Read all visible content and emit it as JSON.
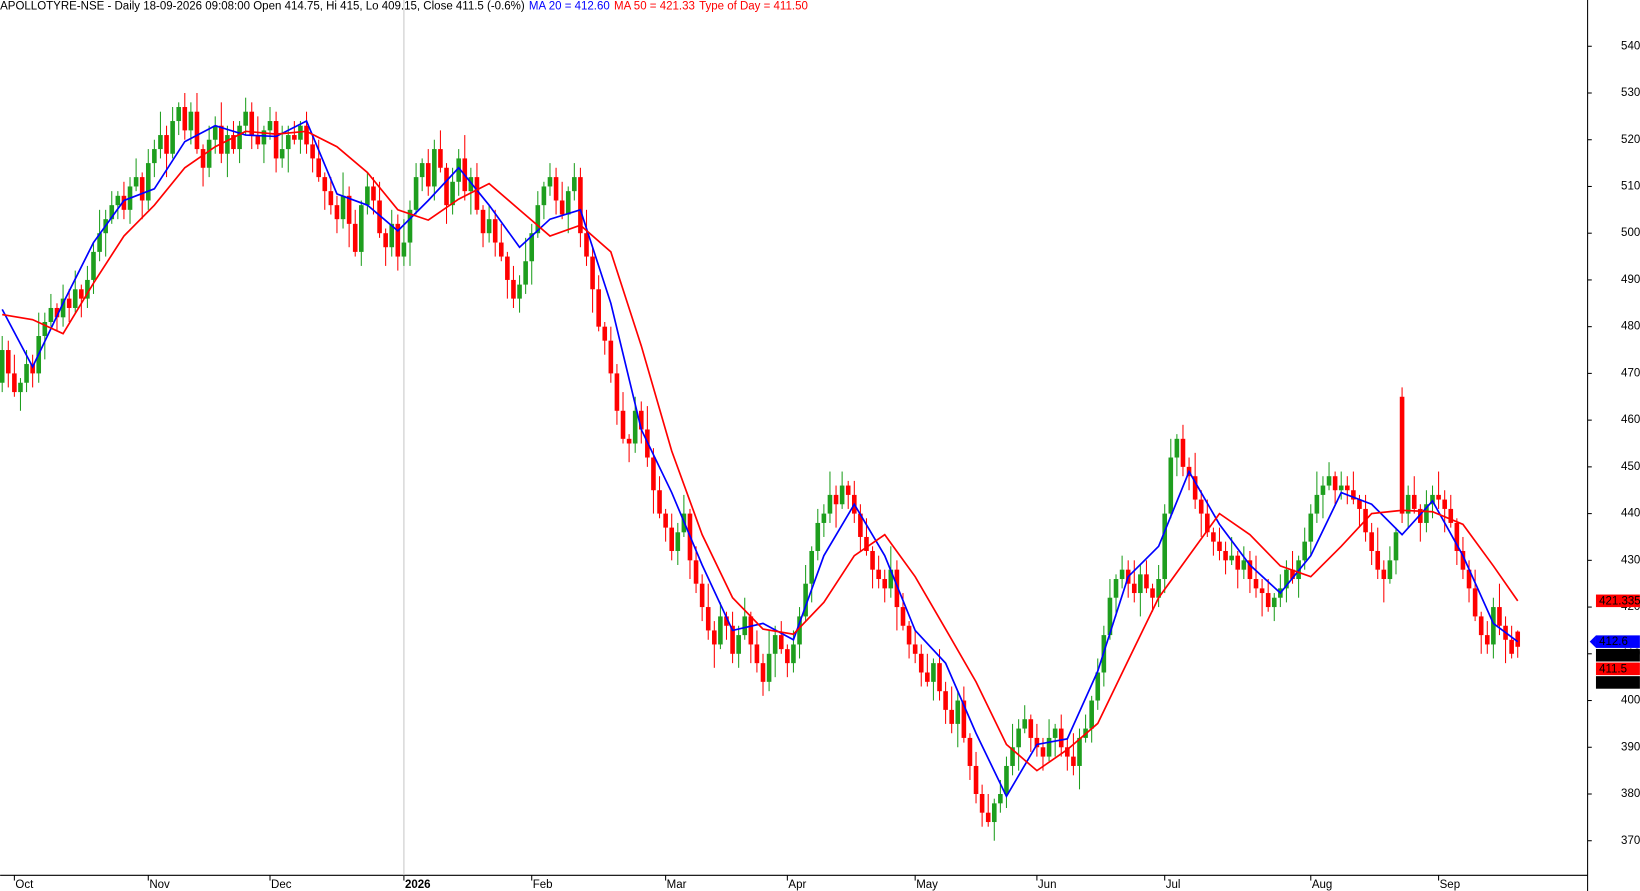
{
  "chart_data": {
    "type": "candlestick",
    "header": [
      {
        "text": "APOLLOTYRE-NSE - Daily 18-09-2026 09:08:00 Open 414.75, Hi 415, Lo 409.15, Close 411.5 (-0.6%)",
        "color": "#000000"
      },
      {
        "text": "MA 20 = 412.60",
        "color": "#0000ff"
      },
      {
        "text": "MA 50 = 421.33",
        "color": "#ff0000"
      },
      {
        "text": "Type of Day = 411.50",
        "color": "#ff0000"
      }
    ],
    "categories": [
      null,
      null,
      "Oct",
      null,
      null,
      null,
      null,
      null,
      null,
      null,
      null,
      null,
      null,
      null,
      null,
      null,
      null,
      null,
      null,
      null,
      null,
      null,
      null,
      null,
      "Nov",
      null,
      null,
      null,
      null,
      null,
      null,
      null,
      null,
      null,
      null,
      null,
      null,
      null,
      null,
      null,
      null,
      null,
      null,
      null,
      "Dec",
      null,
      null,
      null,
      null,
      null,
      null,
      null,
      null,
      null,
      null,
      null,
      null,
      null,
      null,
      null,
      null,
      null,
      null,
      null,
      null,
      null,
      "2026",
      null,
      null,
      null,
      null,
      null,
      null,
      null,
      null,
      null,
      null,
      null,
      null,
      null,
      null,
      null,
      null,
      null,
      null,
      null,
      null,
      "Feb",
      null,
      null,
      null,
      null,
      null,
      null,
      null,
      null,
      null,
      null,
      null,
      null,
      null,
      null,
      null,
      null,
      null,
      null,
      null,
      null,
      null,
      "Mar",
      null,
      null,
      null,
      null,
      null,
      null,
      null,
      null,
      null,
      null,
      null,
      null,
      null,
      null,
      null,
      null,
      null,
      null,
      null,
      "Apr",
      null,
      null,
      null,
      null,
      null,
      null,
      null,
      null,
      null,
      null,
      null,
      null,
      null,
      null,
      null,
      null,
      null,
      null,
      null,
      null,
      "May",
      null,
      null,
      null,
      null,
      null,
      null,
      null,
      null,
      null,
      null,
      null,
      null,
      null,
      null,
      null,
      null,
      null,
      null,
      null,
      "Jun",
      null,
      null,
      null,
      null,
      null,
      null,
      null,
      null,
      null,
      null,
      null,
      null,
      null,
      null,
      null,
      null,
      null,
      null,
      null,
      null,
      "Jul",
      null,
      null,
      null,
      null,
      null,
      null,
      null,
      null,
      null,
      null,
      null,
      null,
      null,
      null,
      null,
      null,
      null,
      null,
      null,
      null,
      null,
      null,
      null,
      "Aug",
      null,
      null,
      null,
      null,
      null,
      null,
      null,
      null,
      null,
      null,
      null,
      null,
      null,
      null,
      null,
      null,
      null,
      null,
      null,
      null,
      "Sep",
      null,
      null,
      null,
      null,
      null,
      null,
      null,
      null,
      null,
      null,
      null,
      null,
      null
    ],
    "open": [
      468,
      475,
      470,
      466,
      468,
      472,
      470,
      478,
      481,
      484,
      482,
      486,
      484,
      488,
      486,
      490,
      496,
      500,
      503,
      506,
      508,
      505,
      510,
      512,
      507,
      515,
      518,
      521,
      517,
      524,
      527,
      522,
      526,
      518,
      514,
      520,
      523,
      517,
      521,
      518,
      523,
      526,
      521,
      519,
      522,
      524,
      516,
      518,
      521,
      520,
      523,
      519,
      516,
      512,
      509,
      506,
      503,
      508,
      502,
      496,
      506,
      510,
      507,
      500,
      497,
      502,
      495,
      498,
      505,
      512,
      515,
      510,
      518,
      514,
      506,
      511,
      516,
      509,
      512,
      505,
      500,
      503,
      498,
      495,
      490,
      486,
      489,
      494,
      500,
      506,
      510,
      512,
      507,
      504,
      509,
      512,
      500,
      495,
      488,
      480,
      477,
      470,
      462,
      456,
      455,
      462,
      458,
      452,
      445,
      440,
      437,
      432,
      436,
      440,
      430,
      425,
      420,
      415,
      412,
      418,
      416,
      410,
      414,
      418,
      412,
      408,
      404,
      410,
      414,
      411,
      408,
      412,
      418,
      425,
      432,
      438,
      440,
      444,
      442,
      446,
      444,
      440,
      435,
      432,
      428,
      426,
      424,
      428,
      420,
      416,
      412,
      410,
      406,
      404,
      408,
      402,
      398,
      395,
      400,
      392,
      386,
      380,
      376,
      374,
      378,
      380,
      386,
      390,
      394,
      396,
      392,
      390,
      388,
      392,
      394,
      390,
      388,
      386,
      392,
      394,
      400,
      406,
      414,
      422,
      426,
      428,
      425,
      423,
      427,
      424,
      422,
      426,
      440,
      452,
      456,
      450,
      448,
      443,
      440,
      436,
      434,
      432,
      430,
      431,
      428,
      430,
      426,
      424,
      423,
      420,
      422,
      424,
      428,
      426,
      430,
      434,
      440,
      444,
      446,
      448,
      445,
      446,
      445,
      443,
      441,
      436,
      432,
      428,
      426,
      430,
      465,
      440,
      444,
      441,
      438,
      442,
      444,
      443,
      441,
      438,
      432,
      428,
      424,
      418,
      414,
      412,
      420,
      416,
      413,
      414.75
    ],
    "high": [
      478,
      477,
      474,
      469,
      475,
      474,
      483,
      483,
      487,
      485,
      489,
      488,
      492,
      489,
      493,
      498,
      505,
      505,
      509,
      509,
      511,
      512,
      516,
      513,
      518,
      520,
      526,
      523,
      527,
      528,
      530,
      528,
      530,
      519,
      523,
      525,
      528,
      523,
      524,
      524,
      529,
      528,
      525,
      523,
      527,
      526,
      523,
      523,
      524,
      524,
      526,
      521,
      520,
      513,
      512,
      508,
      513,
      510,
      505,
      507,
      513,
      512,
      511,
      501,
      505,
      504,
      503,
      507,
      515,
      516,
      518,
      520,
      522,
      515,
      514,
      518,
      521,
      514,
      515,
      506,
      506,
      505,
      502,
      496,
      493,
      491,
      499,
      502,
      509,
      511,
      515,
      514,
      511,
      510,
      515,
      514,
      505,
      497,
      491,
      481,
      480,
      472,
      466,
      457,
      465,
      464,
      463,
      454,
      448,
      441,
      440,
      438,
      444,
      441,
      433,
      427,
      425,
      417,
      421,
      419,
      419,
      416,
      422,
      419,
      415,
      410,
      415,
      416,
      417,
      412,
      415,
      420,
      429,
      433,
      441,
      442,
      449,
      446,
      449,
      447,
      447,
      442,
      439,
      433,
      431,
      428,
      433,
      430,
      423,
      417,
      415,
      412,
      410,
      409,
      411,
      404,
      403,
      402,
      403,
      393,
      389,
      382,
      380,
      379,
      383,
      388,
      395,
      396,
      399,
      397,
      395,
      392,
      396,
      395,
      397,
      392,
      393,
      394,
      397,
      401,
      409,
      416,
      426,
      427,
      431,
      430,
      430,
      429,
      430,
      425,
      429,
      442,
      456,
      457,
      459,
      452,
      453,
      445,
      443,
      437,
      437,
      434,
      435,
      432,
      433,
      432,
      431,
      426,
      426,
      423,
      427,
      430,
      432,
      431,
      437,
      442,
      449,
      448,
      451,
      449,
      449,
      448,
      449,
      444,
      444,
      438,
      437,
      430,
      433,
      437,
      467,
      446,
      448,
      442,
      445,
      446,
      449,
      445,
      444,
      439,
      435,
      430,
      428,
      419,
      417,
      422,
      425,
      418,
      416,
      415
    ],
    "low": [
      466,
      467,
      465,
      462,
      466,
      467,
      468,
      473,
      480,
      479,
      480,
      481,
      483,
      482,
      484,
      487,
      494,
      495,
      502,
      503,
      503,
      502,
      509,
      503,
      505,
      512,
      516,
      512,
      516,
      521,
      520,
      519,
      517,
      510,
      512,
      517,
      515,
      512,
      517,
      515,
      521,
      518,
      518,
      515,
      520,
      513,
      514,
      513,
      519,
      517,
      517,
      513,
      511,
      505,
      504,
      500,
      501,
      497,
      495,
      493,
      504,
      504,
      499,
      493,
      495,
      492,
      493,
      493,
      504,
      509,
      508,
      507,
      513,
      502,
      504,
      508,
      507,
      504,
      504,
      497,
      498,
      495,
      494,
      486,
      484,
      483,
      487,
      489,
      499,
      503,
      508,
      504,
      503,
      500,
      507,
      497,
      493,
      483,
      479,
      474,
      468,
      459,
      455,
      451,
      453,
      455,
      450,
      440,
      439,
      434,
      430,
      429,
      435,
      426,
      423,
      417,
      413,
      407,
      411,
      413,
      408,
      407,
      413,
      408,
      406,
      401,
      402,
      405,
      410,
      405,
      406,
      409,
      417,
      421,
      430,
      435,
      438,
      437,
      441,
      441,
      438,
      432,
      431,
      424,
      424,
      421,
      422,
      415,
      415,
      409,
      408,
      403,
      403,
      400,
      400,
      395,
      393,
      390,
      391,
      383,
      378,
      373,
      373,
      370,
      376,
      377,
      384,
      385,
      393,
      389,
      388,
      385,
      387,
      388,
      388,
      385,
      384,
      381,
      391,
      391,
      398,
      403,
      413,
      418,
      424,
      422,
      421,
      418,
      423,
      419,
      420,
      423,
      439,
      448,
      448,
      445,
      441,
      435,
      435,
      431,
      430,
      427,
      429,
      424,
      426,
      423,
      422,
      418,
      419,
      417,
      420,
      421,
      425,
      422,
      428,
      431,
      438,
      439,
      445,
      442,
      443,
      442,
      442,
      437,
      434,
      429,
      426,
      421,
      425,
      427,
      438,
      437,
      440,
      434,
      436,
      439,
      441,
      436,
      437,
      429,
      426,
      421,
      417,
      410,
      410,
      409,
      414,
      408,
      409,
      409.15
    ],
    "close": [
      475,
      470,
      466,
      468,
      472,
      470,
      478,
      481,
      484,
      482,
      486,
      484,
      488,
      486,
      490,
      496,
      500,
      503,
      506,
      508,
      505,
      510,
      512,
      507,
      515,
      518,
      521,
      517,
      524,
      527,
      522,
      526,
      518,
      514,
      520,
      523,
      517,
      521,
      518,
      523,
      526,
      521,
      519,
      522,
      524,
      516,
      518,
      521,
      520,
      523,
      519,
      516,
      512,
      509,
      506,
      503,
      508,
      502,
      496,
      506,
      510,
      507,
      500,
      497,
      502,
      495,
      498,
      505,
      512,
      515,
      510,
      518,
      514,
      506,
      511,
      516,
      509,
      512,
      505,
      500,
      503,
      498,
      495,
      490,
      486,
      489,
      494,
      500,
      506,
      510,
      512,
      507,
      504,
      509,
      512,
      500,
      495,
      488,
      480,
      477,
      470,
      462,
      456,
      455,
      462,
      458,
      452,
      445,
      440,
      437,
      432,
      436,
      440,
      430,
      425,
      420,
      415,
      412,
      418,
      416,
      410,
      414,
      418,
      412,
      408,
      404,
      410,
      414,
      411,
      408,
      412,
      418,
      425,
      432,
      438,
      440,
      444,
      442,
      446,
      444,
      440,
      435,
      432,
      428,
      426,
      424,
      428,
      420,
      416,
      412,
      410,
      406,
      404,
      408,
      402,
      398,
      395,
      400,
      392,
      386,
      380,
      376,
      374,
      378,
      380,
      386,
      390,
      394,
      396,
      392,
      390,
      388,
      392,
      394,
      390,
      388,
      386,
      392,
      394,
      400,
      406,
      414,
      422,
      426,
      428,
      425,
      423,
      427,
      424,
      422,
      426,
      440,
      452,
      456,
      450,
      448,
      443,
      440,
      436,
      434,
      432,
      430,
      431,
      428,
      430,
      426,
      424,
      423,
      420,
      422,
      424,
      428,
      426,
      430,
      434,
      440,
      444,
      446,
      448,
      445,
      446,
      445,
      443,
      441,
      436,
      432,
      428,
      426,
      430,
      436,
      440,
      444,
      441,
      438,
      442,
      444,
      443,
      441,
      438,
      432,
      428,
      424,
      418,
      414,
      412,
      420,
      416,
      413,
      410,
      411.5
    ],
    "up_color": "#1e9e1e",
    "down_color": "#ff0000",
    "series": [
      {
        "color": "#0000ff",
        "x": [
          0,
          5,
          10,
          15,
          20,
          25,
          30,
          35,
          40,
          45,
          50,
          55,
          60,
          65,
          70,
          75,
          80,
          85,
          90,
          95,
          100,
          105,
          110,
          115,
          120,
          125,
          130,
          135,
          140,
          145,
          150,
          155,
          160,
          165,
          170,
          175,
          180,
          185,
          190,
          195,
          200,
          205,
          210,
          215,
          220,
          225,
          230,
          235,
          240,
          245,
          249
        ],
        "values": [
          483.7,
          471.4,
          485,
          498,
          507,
          509.5,
          519.6,
          523,
          521,
          520.7,
          524,
          508.4,
          506,
          500.5,
          507,
          514,
          506,
          497,
          503,
          505,
          485,
          458,
          444.5,
          429,
          415,
          416.5,
          413,
          431,
          442,
          431,
          415,
          408,
          393,
          379.5,
          390.6,
          391.8,
          406.3,
          426.5,
          433,
          449,
          437.7,
          429,
          423,
          431,
          444.5,
          442,
          435.5,
          442.7,
          431,
          416.5,
          412.6
        ]
      },
      {
        "color": "#ff0000",
        "x": [
          0,
          5,
          10,
          15,
          20,
          25,
          30,
          35,
          40,
          45,
          50,
          55,
          60,
          65,
          70,
          75,
          80,
          85,
          90,
          95,
          100,
          105,
          110,
          115,
          120,
          125,
          130,
          135,
          140,
          145,
          150,
          155,
          160,
          165,
          170,
          175,
          180,
          185,
          190,
          195,
          200,
          205,
          210,
          215,
          220,
          225,
          230,
          235,
          240,
          245,
          249
        ],
        "values": [
          482.6,
          481.5,
          478.5,
          489.3,
          499.4,
          506,
          514,
          518.5,
          521.8,
          521.2,
          521.8,
          518.5,
          513,
          505,
          502.8,
          507.3,
          510.6,
          505,
          499.4,
          501.7,
          496,
          475.9,
          453.4,
          435.5,
          422,
          415.3,
          414.2,
          421,
          431,
          435.5,
          426.5,
          415.3,
          404,
          390.6,
          385,
          389.5,
          395.1,
          408.6,
          422,
          431,
          440,
          435.5,
          428.8,
          426.5,
          433,
          440,
          440.7,
          440.4,
          437.7,
          428.8,
          421.33
        ]
      }
    ],
    "ylim": [
      362.6,
      549.9
    ],
    "yticks": [
      370,
      380,
      390,
      400,
      410,
      420,
      430,
      440,
      450,
      460,
      470,
      480,
      490,
      500,
      510,
      520,
      530,
      540
    ],
    "price_tags": [
      {
        "value": 421.335,
        "color": "#ff0000"
      },
      {
        "value": 412.6,
        "color": "#0000ff"
      },
      {
        "value": 411.5,
        "color": "#000000"
      },
      {
        "value": 411.5,
        "color": "#ff0000"
      },
      {
        "value": 411.5,
        "color": "#000000"
      }
    ]
  }
}
